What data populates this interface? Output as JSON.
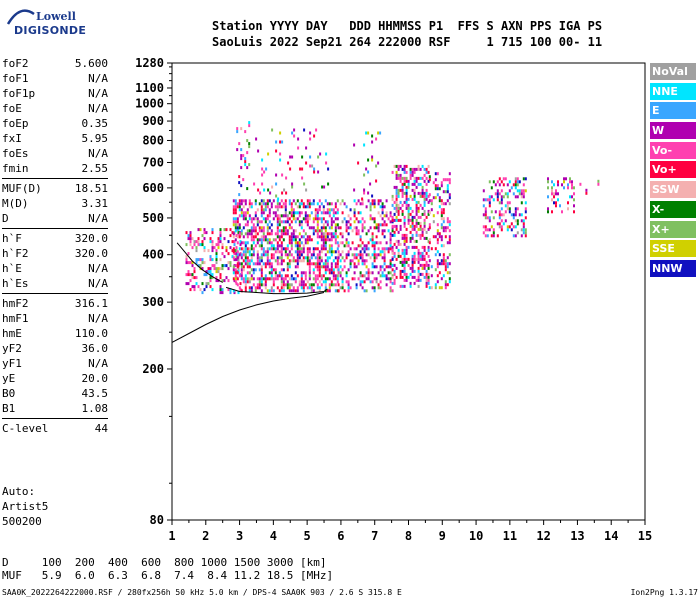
{
  "logo": {
    "line1": "Lowell",
    "line2": "DIGISONDE"
  },
  "header": {
    "line1": "Station YYYY DAY   DDD HHMMSS P1  FFS S AXN PPS IGA PS",
    "line2": "SaoLuis 2022 Sep21 264 222000 RSF     1 715 100 00- 11"
  },
  "params": [
    [
      {
        "label": "foF2",
        "value": "5.600"
      },
      {
        "label": "foF1",
        "value": "N/A"
      },
      {
        "label": "foF1p",
        "value": "N/A"
      },
      {
        "label": "foE",
        "value": "N/A"
      },
      {
        "label": "foEp",
        "value": "0.35"
      },
      {
        "label": "fxI",
        "value": "5.95"
      },
      {
        "label": "foEs",
        "value": "N/A"
      },
      {
        "label": "fmin",
        "value": "2.55"
      }
    ],
    [
      {
        "label": "MUF(D)",
        "value": "18.51"
      },
      {
        "label": "M(D)",
        "value": "3.31"
      },
      {
        "label": "D",
        "value": "N/A"
      }
    ],
    [
      {
        "label": "h`F",
        "value": "320.0"
      },
      {
        "label": "h`F2",
        "value": "320.0"
      },
      {
        "label": "h`E",
        "value": "N/A"
      },
      {
        "label": "h`Es",
        "value": "N/A"
      }
    ],
    [
      {
        "label": "hmF2",
        "value": "316.1"
      },
      {
        "label": "hmF1",
        "value": "N/A"
      },
      {
        "label": "hmE",
        "value": "110.0"
      },
      {
        "label": "yF2",
        "value": "36.0"
      },
      {
        "label": "yF1",
        "value": "N/A"
      },
      {
        "label": "yE",
        "value": "20.0"
      },
      {
        "label": "B0",
        "value": "43.5"
      },
      {
        "label": "B1",
        "value": "1.08"
      }
    ],
    [
      {
        "label": "C-level",
        "value": "44"
      }
    ]
  ],
  "auto": {
    "line1": "Auto:",
    "line2": "Artist5",
    "line3": "500200"
  },
  "bottom_table": {
    "line1": "D     100  200  400  600  800 1000 1500 3000 [km]",
    "line2": "MUF   5.9  6.0  6.3  6.8  7.4  8.4 11.2 18.5 [MHz]"
  },
  "footer": {
    "left": "SAA0K_2022264222000.RSF / 280fx256h 50 kHz 5.0 km / DPS-4 SAA0K 903 / 2.6 S 315.8 E",
    "right": "Ion2Png 1.3.17"
  },
  "legend": [
    {
      "label": "NoVal",
      "color": "#a0a0a0"
    },
    {
      "label": "NNE",
      "color": "#00e5ff"
    },
    {
      "label": "E",
      "color": "#3aa6ff"
    },
    {
      "label": "W",
      "color": "#b000b0"
    },
    {
      "label": "Vo-",
      "color": "#ff40b0"
    },
    {
      "label": "Vo+",
      "color": "#ff0040"
    },
    {
      "label": "SSW",
      "color": "#f4b0b0"
    },
    {
      "label": "X-",
      "color": "#008000"
    },
    {
      "label": "X+",
      "color": "#7fc060"
    },
    {
      "label": "SSE",
      "color": "#d0d000"
    },
    {
      "label": "NNW",
      "color": "#1010c0"
    }
  ],
  "chart_data": {
    "type": "scatter",
    "xlabel": "",
    "ylabel": "",
    "xlim": [
      1,
      15
    ],
    "ylim": [
      80,
      1280
    ],
    "yscale": "log",
    "x_ticks": [
      1,
      2,
      3,
      4,
      5,
      6,
      7,
      8,
      9,
      10,
      11,
      12,
      13,
      14,
      15
    ],
    "y_ticks": [
      80,
      200,
      300,
      400,
      500,
      600,
      700,
      800,
      900,
      1000,
      1100,
      1280
    ],
    "grid": false,
    "trace_profile": {
      "x": [
        1.0,
        1.5,
        2.0,
        2.5,
        3.0,
        3.5,
        4.0,
        4.5,
        5.0,
        5.5
      ],
      "y": [
        235,
        248,
        262,
        275,
        286,
        295,
        302,
        307,
        311,
        318
      ]
    },
    "trace_upper": {
      "x": [
        2.6,
        3.0,
        3.5,
        4.0,
        4.5,
        5.0,
        5.5,
        5.6
      ],
      "y": [
        328,
        320,
        318,
        316,
        316,
        317,
        320,
        325
      ]
    },
    "trace_left": {
      "x": [
        1.15,
        1.3,
        1.6,
        1.9,
        2.2,
        2.5
      ],
      "y": [
        430,
        415,
        385,
        365,
        350,
        338
      ]
    },
    "echo_clusters": [
      {
        "x": [
          1.4,
          3.0
        ],
        "y": [
          320,
          470
        ],
        "density": 0.35
      },
      {
        "x": [
          2.8,
          5.9
        ],
        "y": [
          320,
          560
        ],
        "density": 0.55
      },
      {
        "x": [
          2.9,
          3.3
        ],
        "y": [
          560,
          900
        ],
        "density": 0.15
      },
      {
        "x": [
          3.4,
          5.6
        ],
        "y": [
          560,
          860
        ],
        "density": 0.07
      },
      {
        "x": [
          5.9,
          7.5
        ],
        "y": [
          320,
          560
        ],
        "density": 0.35
      },
      {
        "x": [
          6.3,
          7.2
        ],
        "y": [
          560,
          860
        ],
        "density": 0.06
      },
      {
        "x": [
          7.5,
          8.6
        ],
        "y": [
          330,
          690
        ],
        "density": 0.45
      },
      {
        "x": [
          8.6,
          9.2
        ],
        "y": [
          330,
          660
        ],
        "density": 0.35
      },
      {
        "x": [
          10.2,
          11.5
        ],
        "y": [
          450,
          640
        ],
        "density": 0.35
      },
      {
        "x": [
          12.1,
          12.9
        ],
        "y": [
          520,
          640
        ],
        "density": 0.25
      },
      {
        "x": [
          13.0,
          13.6
        ],
        "y": [
          580,
          630
        ],
        "density": 0.1
      }
    ]
  }
}
